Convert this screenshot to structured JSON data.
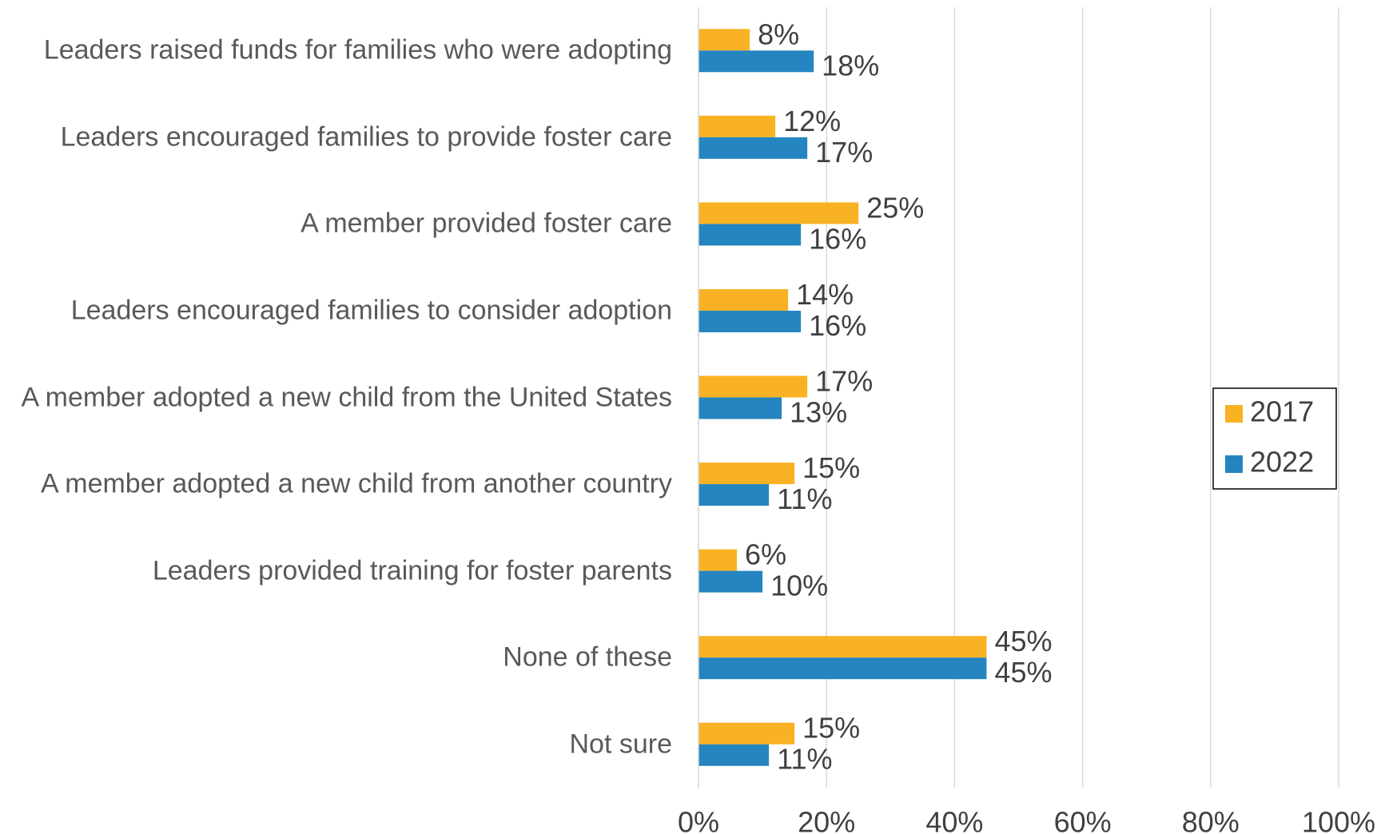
{
  "chart_data": {
    "type": "hbar",
    "categories": [
      "Leaders raised funds for families who were adopting",
      "Leaders encouraged families to provide foster care",
      "A member provided foster care",
      "Leaders encouraged families to consider adoption",
      "A member adopted a new child from the United States",
      "A member adopted a new child from another country",
      "Leaders provided training for foster parents",
      "None of these",
      "Not sure"
    ],
    "series": [
      {
        "name": "2017",
        "color": "#f9b224",
        "values": [
          8,
          12,
          25,
          14,
          17,
          15,
          6,
          45,
          15
        ],
        "value_labels": [
          "8%",
          "12%",
          "25%",
          "14%",
          "17%",
          "15%",
          "6%",
          "45%",
          "15%"
        ]
      },
      {
        "name": "2022",
        "color": "#2585c0",
        "values": [
          18,
          17,
          16,
          16,
          13,
          11,
          10,
          45,
          11
        ],
        "value_labels": [
          "18%",
          "17%",
          "16%",
          "16%",
          "13%",
          "11%",
          "10%",
          "45%",
          "11%"
        ]
      }
    ],
    "xlim": [
      0,
      100
    ],
    "xticks": [
      {
        "value": 0,
        "label": "0%"
      },
      {
        "value": 20,
        "label": "20%"
      },
      {
        "value": 40,
        "label": "40%"
      },
      {
        "value": 60,
        "label": "60%"
      },
      {
        "value": 80,
        "label": "80%"
      },
      {
        "value": 100,
        "label": "100%"
      }
    ],
    "grid": true,
    "legend": "right"
  }
}
